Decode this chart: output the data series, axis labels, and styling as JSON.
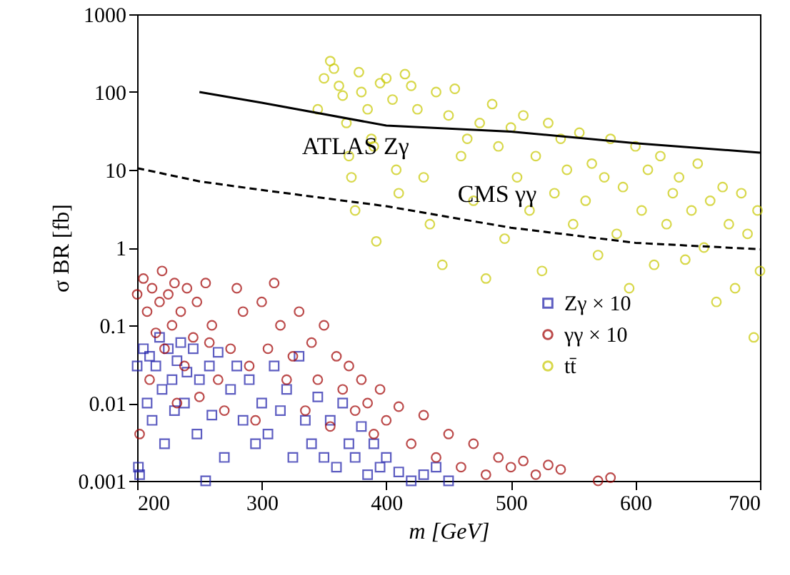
{
  "chart_data": {
    "type": "scatter",
    "xlabel": "m [GeV]",
    "ylabel": "σ BR [fb]",
    "xlim": [
      200,
      700
    ],
    "ylim": [
      0.001,
      1000
    ],
    "xticks": [
      200,
      300,
      400,
      500,
      600,
      700
    ],
    "yticks": [
      0.001,
      0.01,
      0.1,
      1,
      10,
      100,
      1000
    ],
    "log": "y",
    "grid": false,
    "legend": "right",
    "series": [
      {
        "name": "Zγ × 10",
        "color": "#1a1aa8",
        "marker": "square",
        "x": [
          200,
          201,
          202,
          205,
          208,
          210,
          212,
          215,
          218,
          220,
          222,
          225,
          228,
          230,
          232,
          235,
          238,
          240,
          245,
          248,
          250,
          255,
          258,
          260,
          265,
          270,
          275,
          280,
          285,
          290,
          295,
          300,
          305,
          310,
          315,
          320,
          325,
          330,
          335,
          340,
          345,
          350,
          355,
          360,
          365,
          370,
          375,
          380,
          385,
          390,
          395,
          400,
          410,
          420,
          430,
          440,
          450
        ],
        "values": [
          0.03,
          0.0015,
          0.0012,
          0.05,
          0.01,
          0.04,
          0.006,
          0.03,
          0.07,
          0.015,
          0.003,
          0.05,
          0.02,
          0.008,
          0.035,
          0.06,
          0.01,
          0.025,
          0.05,
          0.004,
          0.02,
          0.001,
          0.03,
          0.007,
          0.045,
          0.002,
          0.015,
          0.03,
          0.006,
          0.02,
          0.003,
          0.01,
          0.004,
          0.03,
          0.008,
          0.015,
          0.002,
          0.04,
          0.006,
          0.003,
          0.012,
          0.002,
          0.006,
          0.0015,
          0.01,
          0.003,
          0.002,
          0.005,
          0.0012,
          0.003,
          0.0015,
          0.002,
          0.0013,
          0.001,
          0.0012,
          0.0015,
          0.001
        ]
      },
      {
        "name": "γγ × 10",
        "color": "#a00000",
        "marker": "circle",
        "x": [
          200,
          202,
          205,
          208,
          210,
          212,
          215,
          218,
          220,
          222,
          225,
          228,
          230,
          232,
          235,
          238,
          240,
          245,
          248,
          250,
          255,
          258,
          260,
          265,
          270,
          275,
          280,
          285,
          290,
          295,
          300,
          305,
          310,
          315,
          320,
          325,
          330,
          335,
          340,
          345,
          350,
          355,
          360,
          365,
          370,
          375,
          380,
          385,
          390,
          395,
          400,
          410,
          420,
          430,
          440,
          450,
          460,
          470,
          480,
          490,
          500,
          510,
          520,
          530,
          540,
          570,
          580
        ],
        "values": [
          0.25,
          0.004,
          0.4,
          0.15,
          0.02,
          0.3,
          0.08,
          0.2,
          0.5,
          0.05,
          0.25,
          0.1,
          0.35,
          0.01,
          0.15,
          0.03,
          0.3,
          0.07,
          0.2,
          0.012,
          0.35,
          0.06,
          0.1,
          0.02,
          0.008,
          0.05,
          0.3,
          0.15,
          0.03,
          0.006,
          0.2,
          0.05,
          0.35,
          0.1,
          0.02,
          0.04,
          0.15,
          0.008,
          0.06,
          0.02,
          0.1,
          0.005,
          0.04,
          0.015,
          0.03,
          0.008,
          0.02,
          0.01,
          0.004,
          0.015,
          0.006,
          0.009,
          0.003,
          0.007,
          0.002,
          0.004,
          0.0015,
          0.003,
          0.0012,
          0.002,
          0.0015,
          0.0018,
          0.0012,
          0.0016,
          0.0014,
          0.001,
          0.0011
        ]
      },
      {
        "name": "tt̄",
        "color": "#c8c800",
        "marker": "circle",
        "x": [
          345,
          350,
          355,
          358,
          362,
          365,
          368,
          370,
          372,
          375,
          378,
          380,
          385,
          388,
          390,
          392,
          395,
          400,
          405,
          408,
          410,
          415,
          420,
          425,
          430,
          435,
          440,
          445,
          450,
          455,
          460,
          465,
          470,
          475,
          480,
          485,
          490,
          495,
          500,
          505,
          510,
          515,
          520,
          525,
          530,
          535,
          540,
          545,
          550,
          555,
          560,
          565,
          570,
          575,
          580,
          585,
          590,
          595,
          600,
          605,
          610,
          615,
          620,
          625,
          630,
          635,
          640,
          645,
          650,
          655,
          660,
          665,
          670,
          675,
          680,
          685,
          690,
          695,
          698,
          700
        ],
        "values": [
          60,
          150,
          250,
          200,
          120,
          90,
          40,
          15,
          8,
          3,
          180,
          100,
          60,
          25,
          20,
          1.2,
          130,
          150,
          80,
          10,
          5,
          170,
          120,
          60,
          8,
          2,
          100,
          0.6,
          50,
          110,
          15,
          25,
          4,
          40,
          0.4,
          70,
          20,
          1.3,
          35,
          8,
          50,
          3,
          15,
          0.5,
          40,
          5,
          25,
          10,
          2,
          30,
          4,
          12,
          0.8,
          8,
          25,
          1.5,
          6,
          0.3,
          20,
          3,
          10,
          0.6,
          15,
          2,
          5,
          8,
          0.7,
          3,
          12,
          1,
          4,
          0.2,
          6,
          2,
          0.3,
          5,
          1.5,
          0.07,
          3,
          0.5
        ]
      },
      {
        "type": "line",
        "name": "ATLAS Zγ",
        "color": "#000000",
        "line_style": "solid",
        "marker": "none",
        "x": [
          250,
          300,
          400,
          500,
          600,
          700
        ],
        "values": [
          100,
          73,
          37,
          31,
          22,
          16.6
        ]
      },
      {
        "type": "line",
        "name": "CMS γγ",
        "color": "#000000",
        "line_style": "dashed",
        "marker": "none",
        "x": [
          200,
          250,
          300,
          400,
          500,
          600,
          700
        ],
        "values": [
          10.5,
          7.1,
          5.5,
          3.4,
          1.8,
          1.15,
          0.95
        ]
      }
    ]
  }
}
